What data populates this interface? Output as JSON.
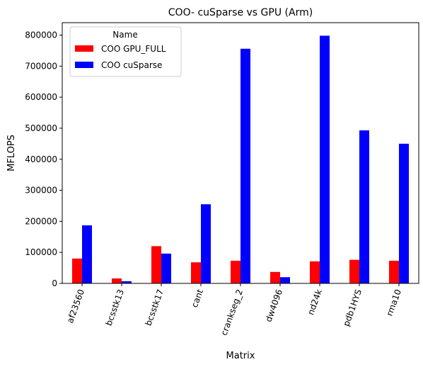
{
  "chart_data": {
    "type": "bar",
    "title": "COO- cuSparse vs GPU (Arm)",
    "xlabel": "Matrix",
    "ylabel": "MFLOPS",
    "ylim": [
      0,
      840000
    ],
    "yticks": [
      0,
      100000,
      200000,
      300000,
      400000,
      500000,
      600000,
      700000,
      800000
    ],
    "categories": [
      "af23560",
      "bcsstk13",
      "bcsstk17",
      "cant",
      "crankseg_2",
      "dw4096",
      "nd24k",
      "pdb1HYS",
      "rma10"
    ],
    "series": [
      {
        "name": "COO GPU_FULL",
        "color": "#ff0000",
        "values": [
          80000,
          16000,
          120000,
          68000,
          73000,
          37000,
          71000,
          76000,
          73000
        ]
      },
      {
        "name": "COO cuSparse",
        "color": "#0000ff",
        "values": [
          187000,
          7000,
          96000,
          255000,
          756000,
          20000,
          798000,
          493000,
          450000
        ]
      }
    ],
    "grid": false,
    "legend": {
      "title": "Name",
      "placement": "top-left"
    }
  }
}
